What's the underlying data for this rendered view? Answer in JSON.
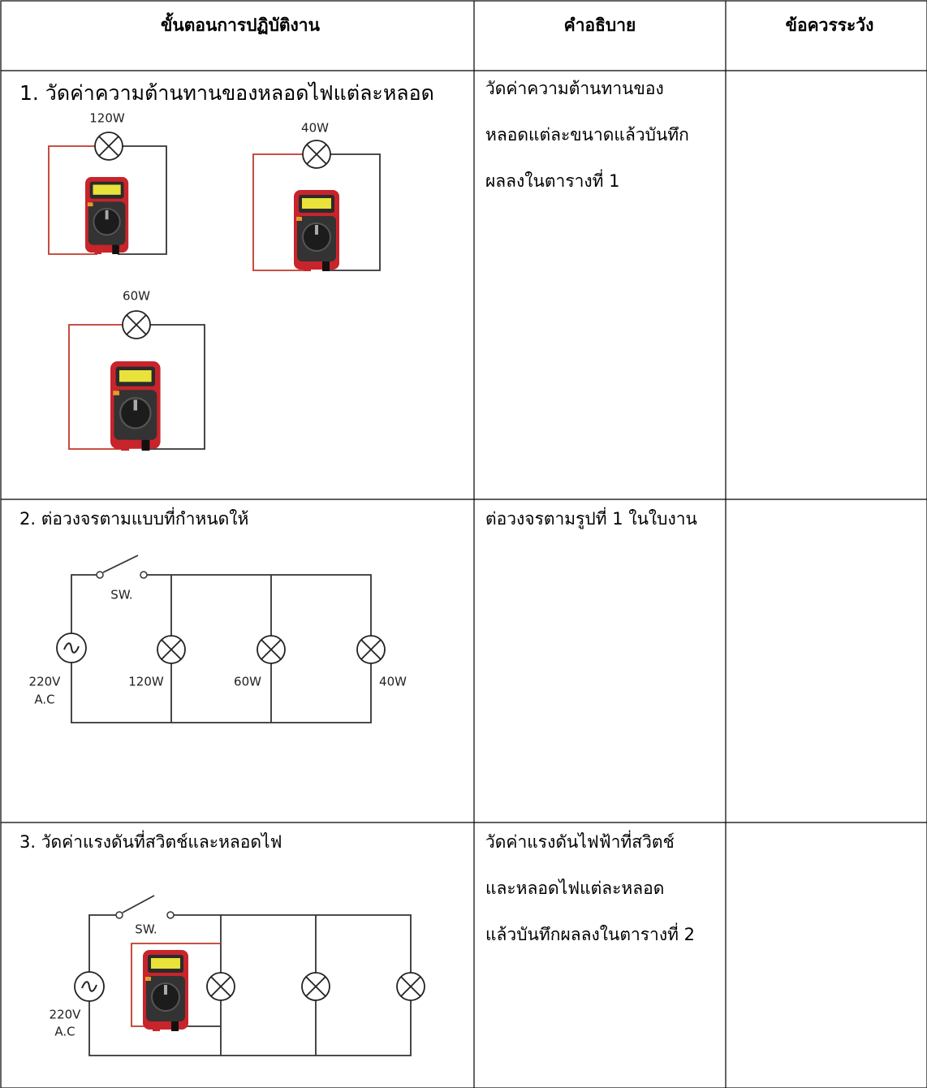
{
  "header": {
    "columns": [
      "ขั้นตอนการปฏิบัติงาน",
      "คำอธิบาย",
      "ข้อควรระวัง"
    ]
  },
  "steps": [
    {
      "text": "1.  วัดค่าความต้านทานของหลอดไฟแต่ละหลอด",
      "description_lines": [
        "วัดค่าความต้านทานของ",
        "หลอดแต่ละขนาดแล้วบันทึก",
        "ผลลงในตารางที่ 1"
      ],
      "diagram": {
        "labels": [
          "120W",
          "40W",
          "60W"
        ]
      }
    },
    {
      "text": "2. ต่อวงจรตามแบบที่กำหนดให้",
      "description_lines": [
        "ต่อวงจรตามรูปที่ 1 ในใบงาน"
      ],
      "diagram": {
        "switch": "SW.",
        "source": [
          "220V",
          "A.C"
        ],
        "lamps": [
          "120W",
          "60W",
          "40W"
        ]
      }
    },
    {
      "text": "3. วัดค่าแรงดันที่สวิตช์และหลอดไฟ",
      "description_lines": [
        "วัดค่าแรงดันไฟฟ้าที่สวิตช์",
        "และหลอดไฟแต่ละหลอด",
        "แล้วบันทึกผลลงในตารางที่ 2"
      ],
      "diagram": {
        "switch": "SW.",
        "source": [
          "220V",
          "A.C"
        ]
      }
    }
  ]
}
